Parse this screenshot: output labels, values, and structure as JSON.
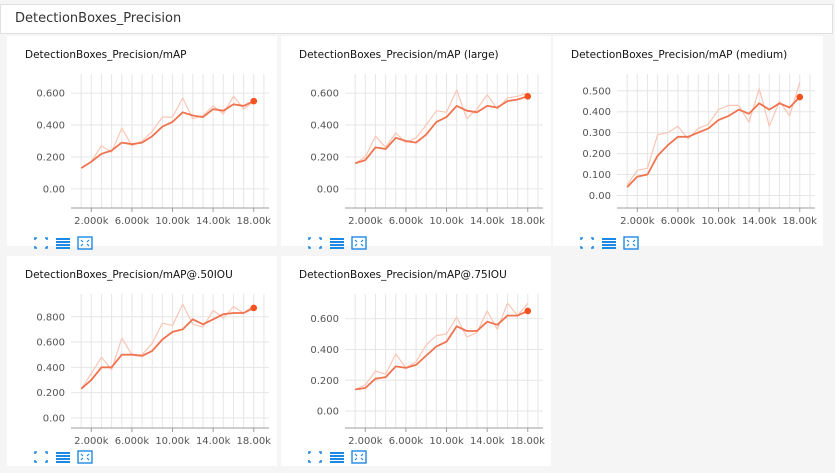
{
  "section_title": "DetectionBoxes_Precision",
  "colors": {
    "accent": "#f4511e",
    "line": "#f0734f",
    "raw": "#f9c6b5",
    "grid": "#e6e6e6",
    "icon": "#1e88e5"
  },
  "icons": [
    "fit-domain-icon",
    "data-table-icon",
    "download-icon"
  ],
  "chart_data": [
    {
      "type": "line",
      "title": "DetectionBoxes_Precision/mAP",
      "xlim": [
        0,
        19500
      ],
      "ylim": [
        -0.12,
        0.72
      ],
      "x_ticks": [
        "2.000k",
        "6.000k",
        "10.00k",
        "14.00k",
        "18.00k"
      ],
      "x_tick_values": [
        2000,
        6000,
        10000,
        14000,
        18000
      ],
      "y_ticks": [
        "0.00",
        "0.200",
        "0.400",
        "0.600"
      ],
      "y_tick_values": [
        0,
        0.2,
        0.4,
        0.6
      ],
      "series": [
        {
          "x": [
            1000,
            2000,
            3000,
            4000,
            5000,
            6000,
            7000,
            8000,
            9000,
            10000,
            11000,
            12000,
            13000,
            14000,
            15000,
            16000,
            17000,
            18000
          ],
          "values": [
            0.13,
            0.17,
            0.22,
            0.24,
            0.29,
            0.28,
            0.29,
            0.33,
            0.39,
            0.42,
            0.48,
            0.46,
            0.45,
            0.5,
            0.49,
            0.53,
            0.52,
            0.55
          ]
        },
        {
          "x": [
            1000,
            2000,
            3000,
            4000,
            5000,
            6000,
            7000,
            8000,
            9000,
            10000,
            11000,
            12000,
            13000,
            14000,
            15000,
            16000,
            17000,
            18000
          ],
          "values": [
            0.13,
            0.17,
            0.27,
            0.23,
            0.38,
            0.27,
            0.3,
            0.36,
            0.45,
            0.45,
            0.57,
            0.44,
            0.46,
            0.52,
            0.47,
            0.58,
            0.5,
            0.55
          ]
        }
      ]
    },
    {
      "type": "line",
      "title": "DetectionBoxes_Precision/mAP (large)",
      "xlim": [
        0,
        19500
      ],
      "ylim": [
        -0.12,
        0.72
      ],
      "x_ticks": [
        "2.000k",
        "6.000k",
        "10.00k",
        "14.00k",
        "18.00k"
      ],
      "x_tick_values": [
        2000,
        6000,
        10000,
        14000,
        18000
      ],
      "y_ticks": [
        "0.00",
        "0.200",
        "0.400",
        "0.600"
      ],
      "y_tick_values": [
        0,
        0.2,
        0.4,
        0.6
      ],
      "series": [
        {
          "x": [
            1000,
            2000,
            3000,
            4000,
            5000,
            6000,
            7000,
            8000,
            9000,
            10000,
            11000,
            12000,
            13000,
            14000,
            15000,
            16000,
            17000,
            18000
          ],
          "values": [
            0.16,
            0.18,
            0.26,
            0.25,
            0.32,
            0.3,
            0.29,
            0.34,
            0.42,
            0.45,
            0.52,
            0.49,
            0.48,
            0.52,
            0.51,
            0.55,
            0.56,
            0.58
          ]
        },
        {
          "x": [
            1000,
            2000,
            3000,
            4000,
            5000,
            6000,
            7000,
            8000,
            9000,
            10000,
            11000,
            12000,
            13000,
            14000,
            15000,
            16000,
            17000,
            18000
          ],
          "values": [
            0.16,
            0.2,
            0.33,
            0.26,
            0.35,
            0.29,
            0.32,
            0.4,
            0.49,
            0.48,
            0.62,
            0.44,
            0.5,
            0.59,
            0.5,
            0.57,
            0.58,
            0.6
          ]
        }
      ]
    },
    {
      "type": "line",
      "title": "DetectionBoxes_Precision/mAP (medium)",
      "xlim": [
        0,
        19500
      ],
      "ylim": [
        -0.06,
        0.58
      ],
      "x_ticks": [
        "2.000k",
        "6.000k",
        "10.00k",
        "14.00k",
        "18.00k"
      ],
      "x_tick_values": [
        2000,
        6000,
        10000,
        14000,
        18000
      ],
      "y_ticks": [
        "0.00",
        "0.100",
        "0.200",
        "0.300",
        "0.400",
        "0.500"
      ],
      "y_tick_values": [
        0,
        0.1,
        0.2,
        0.3,
        0.4,
        0.5
      ],
      "series": [
        {
          "x": [
            1000,
            2000,
            3000,
            4000,
            5000,
            6000,
            7000,
            8000,
            9000,
            10000,
            11000,
            12000,
            13000,
            14000,
            15000,
            16000,
            17000,
            18000
          ],
          "values": [
            0.04,
            0.09,
            0.1,
            0.19,
            0.24,
            0.28,
            0.28,
            0.3,
            0.32,
            0.36,
            0.38,
            0.41,
            0.39,
            0.44,
            0.41,
            0.44,
            0.42,
            0.47
          ]
        },
        {
          "x": [
            1000,
            2000,
            3000,
            4000,
            5000,
            6000,
            7000,
            8000,
            9000,
            10000,
            11000,
            12000,
            13000,
            14000,
            15000,
            16000,
            17000,
            18000
          ],
          "values": [
            0.05,
            0.12,
            0.13,
            0.29,
            0.3,
            0.33,
            0.27,
            0.32,
            0.34,
            0.41,
            0.43,
            0.43,
            0.35,
            0.51,
            0.33,
            0.45,
            0.38,
            0.54
          ]
        }
      ]
    },
    {
      "type": "line",
      "title": "DetectionBoxes_Precision/mAP@.50IOU",
      "xlim": [
        0,
        19500
      ],
      "ylim": [
        -0.08,
        0.98
      ],
      "x_ticks": [
        "2.000k",
        "6.000k",
        "10.00k",
        "14.00k",
        "18.00k"
      ],
      "x_tick_values": [
        2000,
        6000,
        10000,
        14000,
        18000
      ],
      "y_ticks": [
        "0.00",
        "0.200",
        "0.400",
        "0.600",
        "0.800"
      ],
      "y_tick_values": [
        0,
        0.2,
        0.4,
        0.6,
        0.8
      ],
      "series": [
        {
          "x": [
            1000,
            2000,
            3000,
            4000,
            5000,
            6000,
            7000,
            8000,
            9000,
            10000,
            11000,
            12000,
            13000,
            14000,
            15000,
            16000,
            17000,
            18000
          ],
          "values": [
            0.23,
            0.3,
            0.4,
            0.4,
            0.5,
            0.5,
            0.49,
            0.53,
            0.62,
            0.68,
            0.7,
            0.78,
            0.74,
            0.78,
            0.82,
            0.83,
            0.83,
            0.87
          ]
        },
        {
          "x": [
            1000,
            2000,
            3000,
            4000,
            5000,
            6000,
            7000,
            8000,
            9000,
            10000,
            11000,
            12000,
            13000,
            14000,
            15000,
            16000,
            17000,
            18000
          ],
          "values": [
            0.23,
            0.35,
            0.48,
            0.38,
            0.63,
            0.5,
            0.5,
            0.59,
            0.75,
            0.73,
            0.9,
            0.74,
            0.72,
            0.85,
            0.79,
            0.88,
            0.83,
            0.89
          ]
        }
      ]
    },
    {
      "type": "line",
      "title": "DetectionBoxes_Precision/mAP@.75IOU",
      "xlim": [
        0,
        19500
      ],
      "ylim": [
        -0.11,
        0.76
      ],
      "x_ticks": [
        "2.000k",
        "6.000k",
        "10.00k",
        "14.00k",
        "18.00k"
      ],
      "x_tick_values": [
        2000,
        6000,
        10000,
        14000,
        18000
      ],
      "y_ticks": [
        "0.00",
        "0.200",
        "0.400",
        "0.600"
      ],
      "y_tick_values": [
        0,
        0.2,
        0.4,
        0.6
      ],
      "series": [
        {
          "x": [
            1000,
            2000,
            3000,
            4000,
            5000,
            6000,
            7000,
            8000,
            9000,
            10000,
            11000,
            12000,
            13000,
            14000,
            15000,
            16000,
            17000,
            18000
          ],
          "values": [
            0.14,
            0.15,
            0.21,
            0.22,
            0.29,
            0.28,
            0.3,
            0.36,
            0.42,
            0.45,
            0.55,
            0.52,
            0.52,
            0.58,
            0.56,
            0.62,
            0.62,
            0.65
          ]
        },
        {
          "x": [
            1000,
            2000,
            3000,
            4000,
            5000,
            6000,
            7000,
            8000,
            9000,
            10000,
            11000,
            12000,
            13000,
            14000,
            15000,
            16000,
            17000,
            18000
          ],
          "values": [
            0.14,
            0.17,
            0.26,
            0.24,
            0.37,
            0.28,
            0.32,
            0.43,
            0.49,
            0.5,
            0.61,
            0.48,
            0.51,
            0.65,
            0.53,
            0.7,
            0.62,
            0.7
          ]
        }
      ]
    }
  ]
}
